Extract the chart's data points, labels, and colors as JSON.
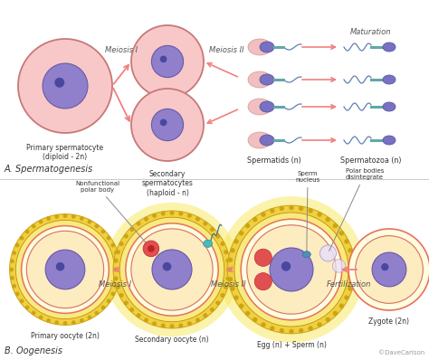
{
  "background_color": "#ffffff",
  "section_a_label": "A. Spermatogenesis",
  "section_b_label": "B. Oogenesis",
  "copyright": "©DaveCarlson",
  "colors": {
    "cell_pink_edge": "#c87878",
    "cell_pink_fill": "#f8c8c8",
    "nucleus_purple": "#9080cc",
    "nucleus_edge": "#6858a8",
    "nucleolus": "#4848a0",
    "arrow_pink": "#f08080",
    "sperm_head": "#7870c0",
    "sperm_body": "#f0b8b8",
    "sperm_mid": "#60a8a8",
    "sperm_tail": "#6080b0",
    "egg_yellow": "#f0d040",
    "egg_yellow_fill": "#f8ea80",
    "egg_cream": "#fffce0",
    "egg_pink_edge": "#e87060",
    "egg_inner_fill": "#fdecc0",
    "polar_red": "#e05050",
    "text_dark": "#333333",
    "text_gray": "#555555",
    "divider": "#cccccc"
  }
}
